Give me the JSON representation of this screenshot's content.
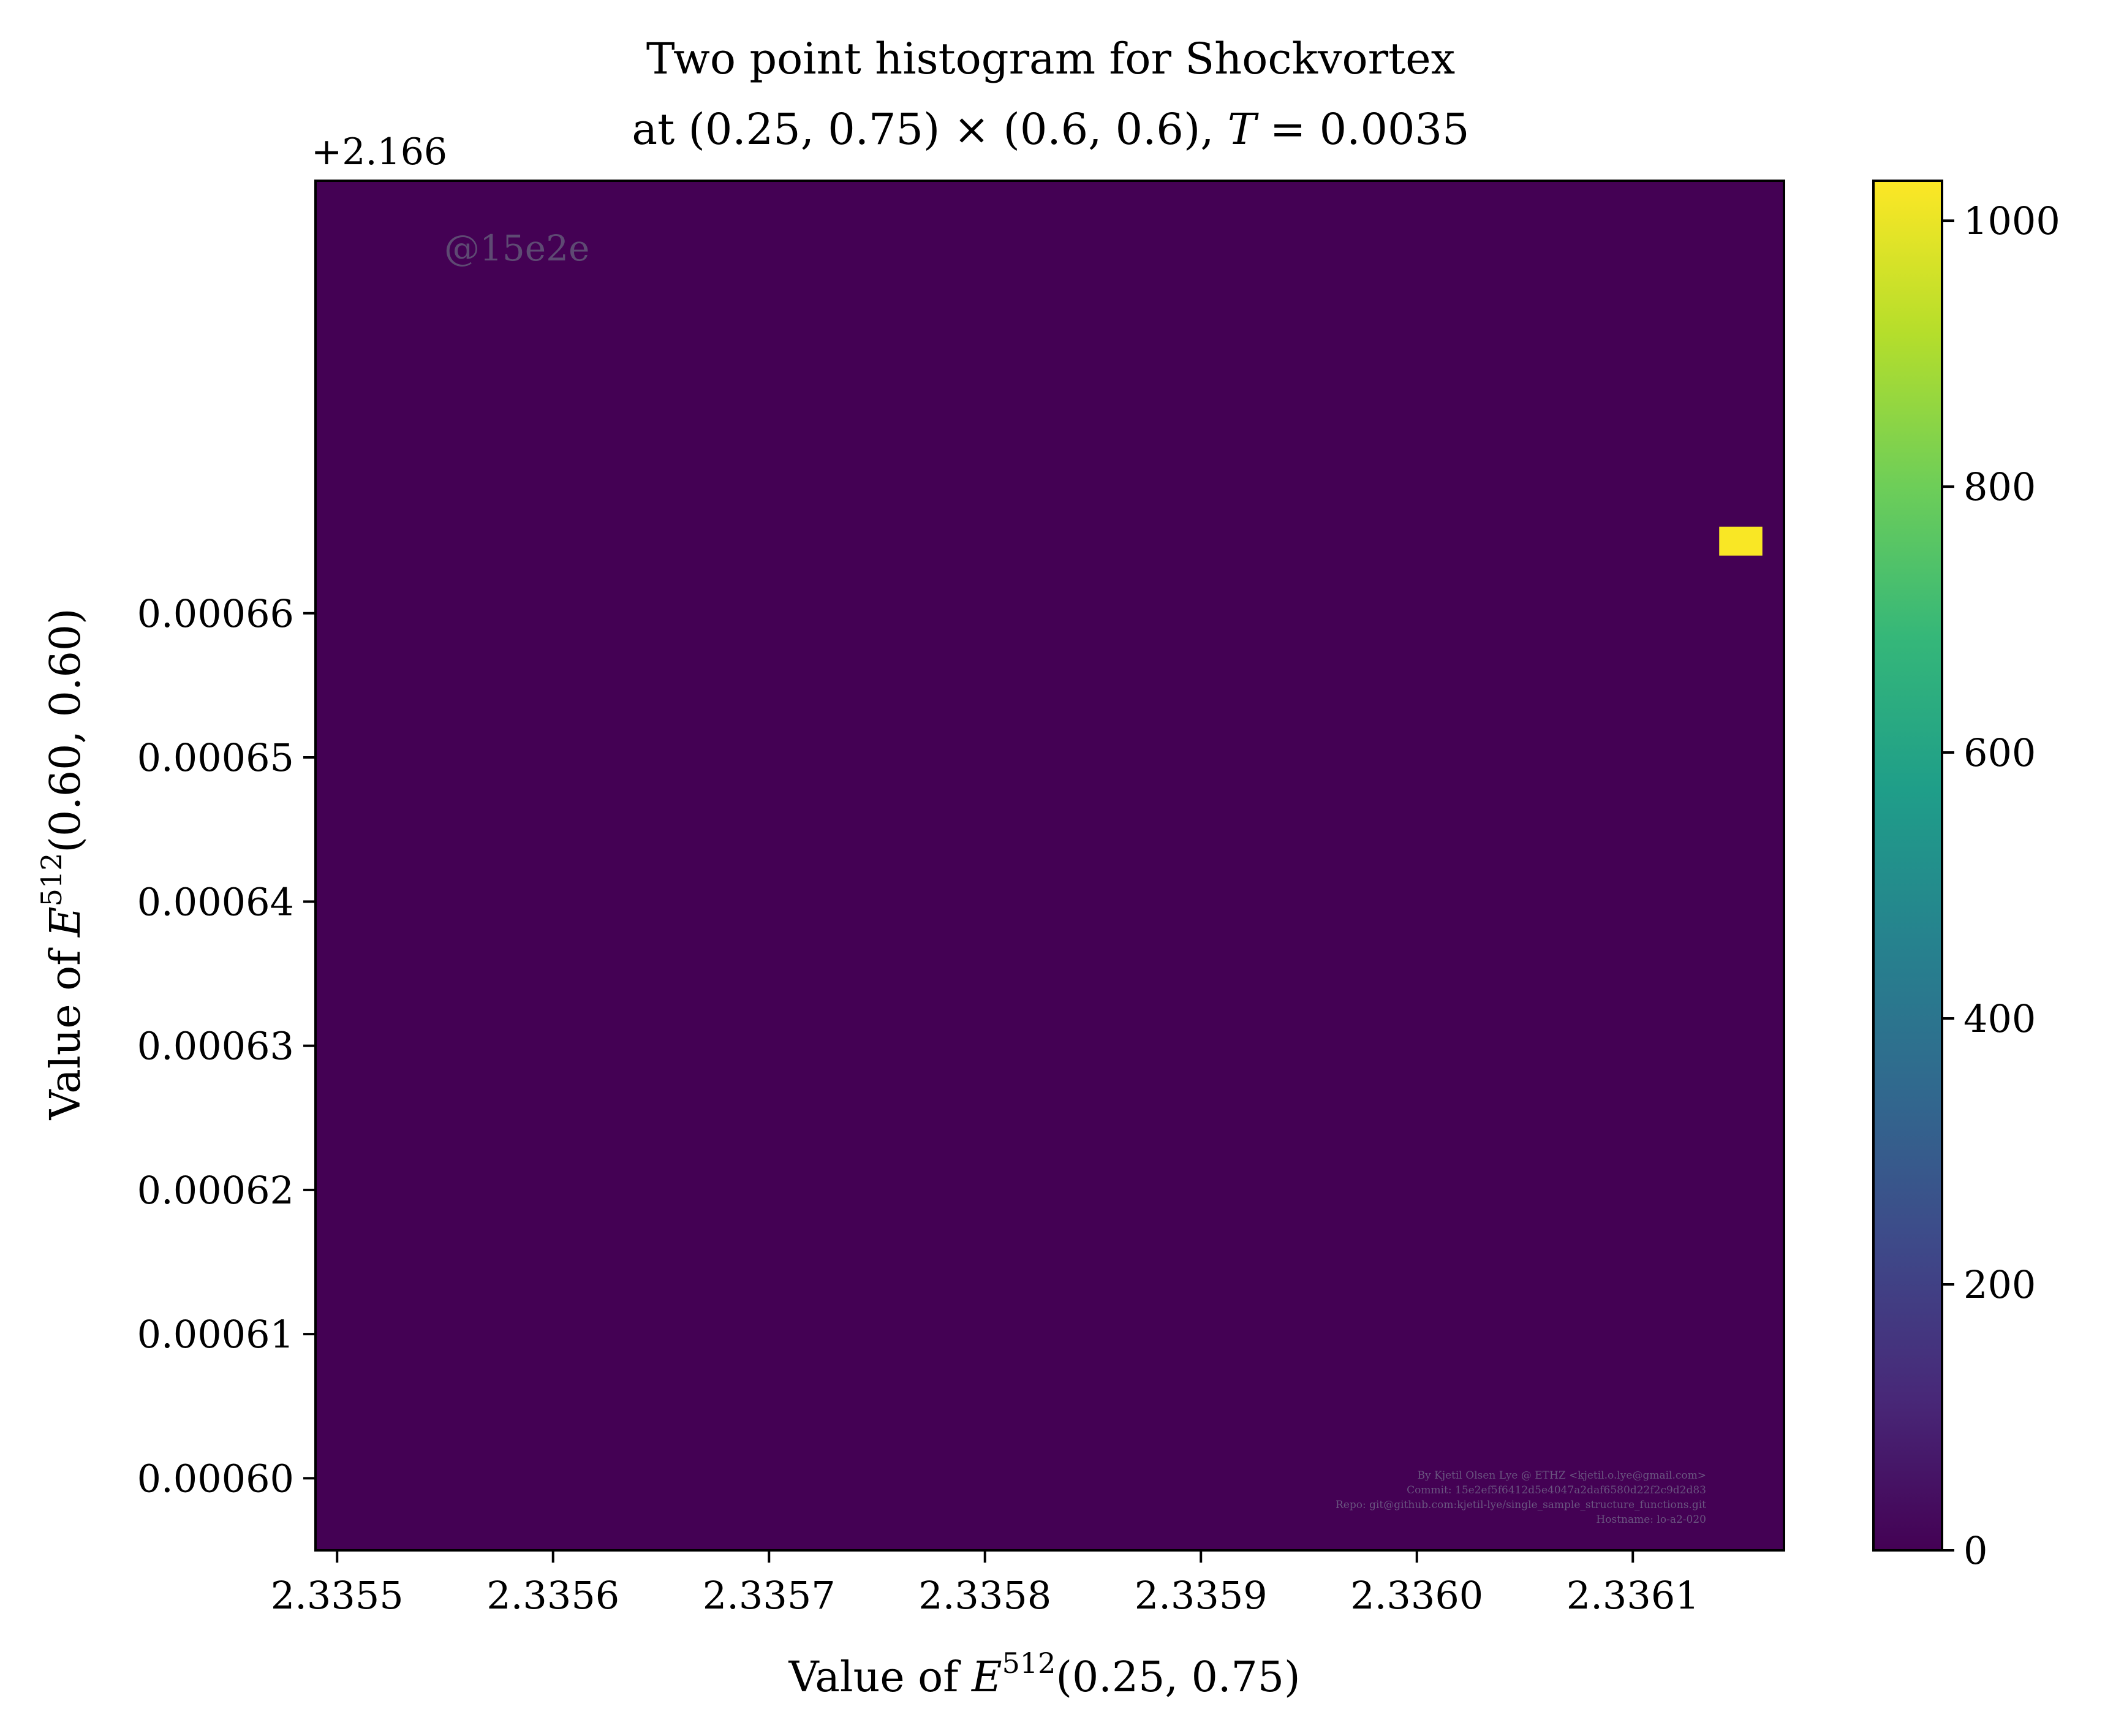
{
  "chart_data": {
    "type": "heatmap",
    "title_line1": "Two point histogram for Shockvortex",
    "title_line2_prefix": "at (0.25, 0.75) × (0.6, 0.6), ",
    "title_line2_T": "T",
    "title_line2_suffix": " = 0.0035",
    "y_offset_label": "+2.166",
    "xlabel": {
      "prefix": "Value of ",
      "sym": "E",
      "sup": "512",
      "suffix": "(0.25, 0.75)"
    },
    "ylabel": {
      "prefix": "Value of ",
      "sym": "E",
      "sup": "512",
      "suffix": "(0.60, 0.60)"
    },
    "xlim": [
      2.33549,
      2.33617
    ],
    "ylim": [
      0.000595,
      0.00069
    ],
    "x_ticks": [
      2.3355,
      2.3356,
      2.3357,
      2.3358,
      2.3359,
      2.336,
      2.3361
    ],
    "x_tick_labels": [
      "2.3355",
      "2.3356",
      "2.3357",
      "2.3358",
      "2.3359",
      "2.3360",
      "2.3361"
    ],
    "y_ticks": [
      0.0006,
      0.00061,
      0.00062,
      0.00063,
      0.00064,
      0.00065,
      0.00066
    ],
    "y_tick_labels": [
      "0.00060",
      "0.00061",
      "0.00062",
      "0.00063",
      "0.00064",
      "0.00065",
      "0.00066"
    ],
    "background_count": 0,
    "cells": [
      {
        "x0": 2.33614,
        "x1": 2.33616,
        "y0": 0.000664,
        "y1": 0.000666,
        "count": 1024
      }
    ],
    "colorbar": {
      "min": 0,
      "max": 1030,
      "ticks": [
        0,
        200,
        400,
        600,
        800,
        1000
      ],
      "tick_labels": [
        "0",
        "200",
        "400",
        "600",
        "800",
        "1000"
      ],
      "colormap": "viridis"
    },
    "colors": {
      "background_cell": "#440154",
      "peak_cell": "#fde725",
      "viridis": [
        "#440154",
        "#482878",
        "#3e4989",
        "#31688e",
        "#26828e",
        "#1f9e89",
        "#35b779",
        "#6ece58",
        "#b5de2b",
        "#fde725"
      ]
    },
    "watermark": "@15e2e",
    "footer_lines": [
      "By Kjetil Olsen Lye @ ETHZ <kjetil.o.lye@gmail.com>",
      "Commit: 15e2ef5f6412d5e4047a2daf6580d22f2c9d2d83",
      "Repo: git@github.com:kjetil-lye/single_sample_structure_functions.git",
      "Hostname: lo-a2-020"
    ]
  }
}
